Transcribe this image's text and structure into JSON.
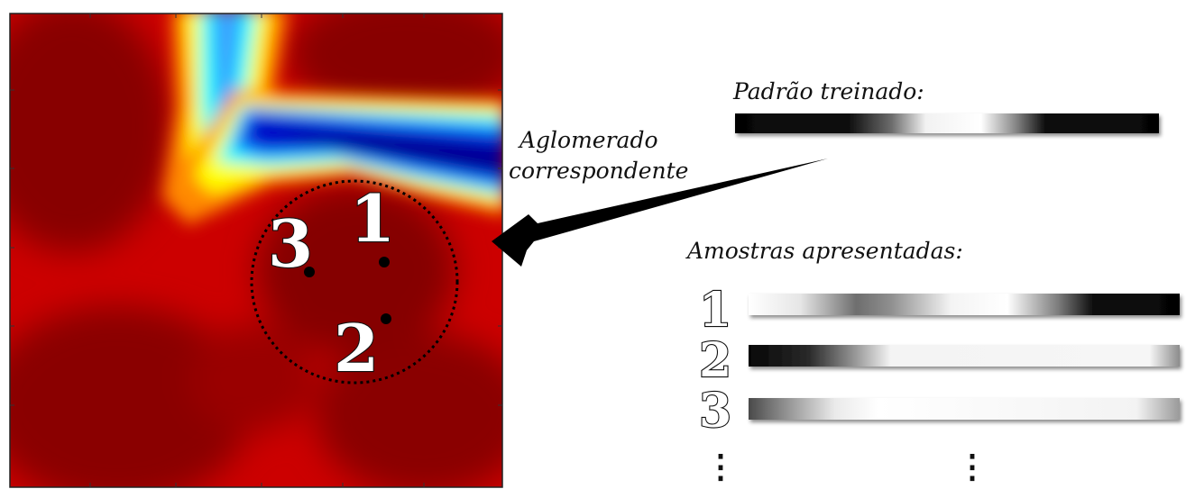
{
  "labels": {
    "cluster_line1": "Aglomerado",
    "cluster_line2": "correspondente",
    "trained_pattern": "Padrão treinado:",
    "samples": "Amostras apresentadas:"
  },
  "map_numbers": [
    "1",
    "2",
    "3"
  ],
  "sample_numbers": [
    "1",
    "2",
    "3"
  ],
  "ellipsis": "⋮",
  "colors": {
    "map_dark_red": "#800000",
    "map_red": "#cc0000",
    "map_yellow": "#ffff00",
    "map_cyan": "#00ffff",
    "map_blue": "#0000cc"
  }
}
